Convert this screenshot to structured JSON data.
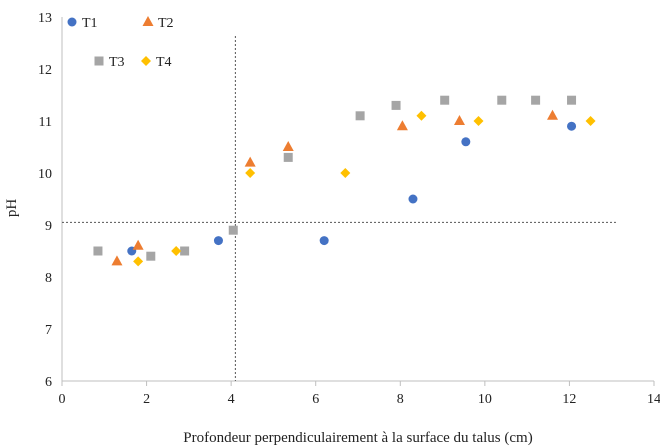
{
  "chart_data": {
    "type": "scatter",
    "xlabel": "Profondeur perpendiculairement à la surface du talus (cm)",
    "ylabel": "pH",
    "xlim": [
      0,
      14
    ],
    "ylim": [
      6,
      13
    ],
    "xticks": [
      0,
      2,
      4,
      6,
      8,
      10,
      12,
      14
    ],
    "yticks": [
      6,
      7,
      8,
      9,
      10,
      11,
      12,
      13
    ],
    "grid": false,
    "legend_position": "top-left",
    "reference_lines": {
      "vertical_x": 4.1,
      "horizontal_y": 9.05
    },
    "series": [
      {
        "name": "T1",
        "marker": "circle",
        "color": "#4472C4",
        "points": [
          [
            1.65,
            8.5
          ],
          [
            3.7,
            8.7
          ],
          [
            6.2,
            8.7
          ],
          [
            8.3,
            9.5
          ],
          [
            9.55,
            10.6
          ],
          [
            12.05,
            10.9
          ]
        ]
      },
      {
        "name": "T2",
        "marker": "triangle",
        "color": "#ED7D31",
        "points": [
          [
            1.3,
            8.3
          ],
          [
            1.8,
            8.6
          ],
          [
            4.45,
            10.2
          ],
          [
            5.35,
            10.5
          ],
          [
            8.05,
            10.9
          ],
          [
            9.4,
            11.0
          ],
          [
            11.6,
            11.1
          ]
        ]
      },
      {
        "name": "T3",
        "marker": "square",
        "color": "#A5A5A5",
        "points": [
          [
            0.85,
            8.5
          ],
          [
            2.1,
            8.4
          ],
          [
            2.9,
            8.5
          ],
          [
            4.05,
            8.9
          ],
          [
            5.35,
            10.3
          ],
          [
            7.05,
            11.1
          ],
          [
            7.9,
            11.3
          ],
          [
            9.05,
            11.4
          ],
          [
            10.4,
            11.4
          ],
          [
            11.2,
            11.4
          ],
          [
            12.05,
            11.4
          ]
        ]
      },
      {
        "name": "T4",
        "marker": "diamond",
        "color": "#FFC000",
        "points": [
          [
            1.8,
            8.3
          ],
          [
            2.7,
            8.5
          ],
          [
            4.45,
            10.0
          ],
          [
            6.7,
            10.0
          ],
          [
            8.5,
            11.1
          ],
          [
            9.85,
            11.0
          ],
          [
            12.5,
            11.0
          ]
        ]
      }
    ]
  }
}
